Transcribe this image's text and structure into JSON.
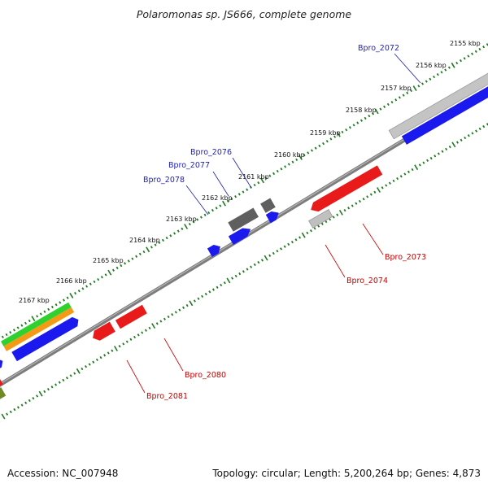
{
  "title": "Polaromonas sp. JS666, complete genome",
  "footer": {
    "accession": "Accession: NC_007948",
    "summary": "Topology: circular; Length: 5,200,264 bp; Genes: 4,873"
  },
  "colors": {
    "backbone": "#7a7a7a",
    "ticks": "#1f7a1f",
    "label_forward": "#1f1fb4",
    "label_reverse": "#c80000"
  },
  "scale_labels": [
    "2155 kbp",
    "2156 kbp",
    "2157 kbp",
    "2158 kbp",
    "2159 kbp",
    "2160 kbp",
    "2161 kbp",
    "2162 kbp",
    "2163 kbp",
    "2164 kbp",
    "2165 kbp",
    "2166 kbp",
    "2167 kbp"
  ],
  "gene_labels": {
    "forward": [
      "Bpro_2072",
      "Bpro_2076",
      "Bpro_2077",
      "Bpro_2078"
    ],
    "reverse": [
      "Bpro_2073",
      "Bpro_2074",
      "Bpro_2080",
      "Bpro_2081"
    ]
  },
  "features": [
    {
      "track": "backbone",
      "color": "gray"
    },
    {
      "track": "forward-1",
      "color": "silver"
    },
    {
      "track": "forward-2",
      "color": "blue"
    },
    {
      "track": "forward-1",
      "color": "dark-gray"
    },
    {
      "track": "forward-1",
      "color": "dark-gray"
    },
    {
      "track": "forward-2",
      "color": "blue"
    },
    {
      "track": "forward-2",
      "color": "blue"
    },
    {
      "track": "forward-2",
      "color": "blue"
    },
    {
      "track": "reverse-1",
      "color": "red"
    },
    {
      "track": "reverse-1",
      "color": "red"
    },
    {
      "track": "reverse-2",
      "color": "silver"
    },
    {
      "track": "reverse-1",
      "color": "red"
    },
    {
      "track": "reverse-1",
      "color": "red"
    },
    {
      "track": "forward-3",
      "color": "green"
    },
    {
      "track": "forward-3",
      "color": "orange"
    },
    {
      "track": "forward-2",
      "color": "blue"
    },
    {
      "track": "forward-2",
      "color": "blue"
    },
    {
      "track": "reverse-1",
      "color": "red"
    },
    {
      "track": "reverse-2",
      "color": "olive"
    }
  ]
}
